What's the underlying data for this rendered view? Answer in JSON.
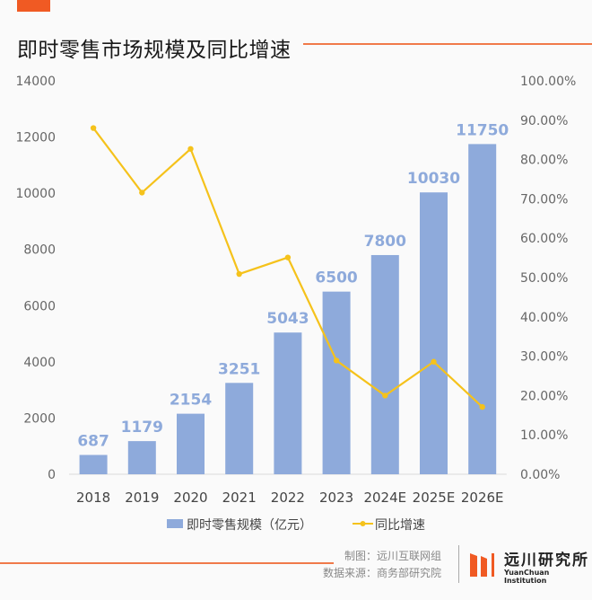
{
  "title": "即时零售市场规模及同比增速",
  "chart_data": {
    "type": "bar+line",
    "categories": [
      "2018",
      "2019",
      "2020",
      "2021",
      "2022",
      "2023",
      "2024E",
      "2025E",
      "2026E"
    ],
    "series": [
      {
        "name": "即时零售规模（亿元）",
        "type": "bar",
        "axis": "left",
        "color": "#8eaadb",
        "values": [
          687,
          1179,
          2154,
          3251,
          5043,
          6500,
          7800,
          10030,
          11750
        ]
      },
      {
        "name": "同比增速",
        "type": "line",
        "axis": "right",
        "color": "#f5c21b",
        "values": [
          88.0,
          71.6,
          82.7,
          50.9,
          55.1,
          28.9,
          20.0,
          28.6,
          17.1
        ]
      }
    ],
    "y_left": {
      "min": 0,
      "max": 14000,
      "ticks": [
        "0",
        "2000",
        "4000",
        "6000",
        "8000",
        "10000",
        "12000",
        "14000"
      ]
    },
    "y_right": {
      "min": 0,
      "max": 100,
      "ticks": [
        "0.00%",
        "10.00%",
        "20.00%",
        "30.00%",
        "40.00%",
        "50.00%",
        "60.00%",
        "70.00%",
        "80.00%",
        "90.00%",
        "100.00%"
      ]
    },
    "data_labels": [
      "687",
      "1179",
      "2154",
      "3251",
      "5043",
      "6500",
      "7800",
      "10030",
      "11750"
    ],
    "grid": false,
    "legend_position": "bottom"
  },
  "footer": {
    "credit_chart": "制图：远川互联网组",
    "credit_source": "数据来源：商务部研究院",
    "logo_name": "远川研究所",
    "logo_en": "YuanChuan Institution"
  },
  "colors": {
    "accent": "#f05a23",
    "bar": "#8eaadb",
    "line": "#f5c21b"
  }
}
